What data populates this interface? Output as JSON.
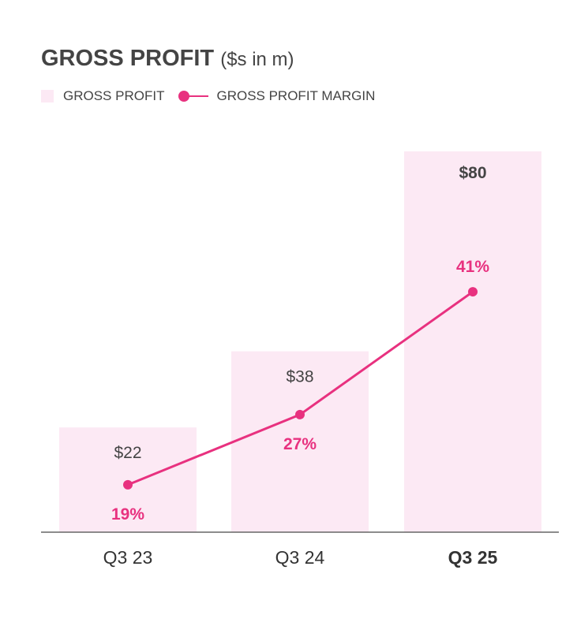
{
  "chart_data": {
    "type": "bar",
    "title": "GROSS PROFIT",
    "subtitle": "($s in m)",
    "categories": [
      "Q3 23",
      "Q3 24",
      "Q3 25"
    ],
    "highlight_category": "Q3 25",
    "series": [
      {
        "name": "GROSS PROFIT",
        "type": "bar",
        "values": [
          22,
          38,
          80
        ],
        "labels": [
          "$22",
          "$38",
          "$80"
        ],
        "color": "#fce9f4"
      },
      {
        "name": "GROSS PROFIT MARGIN",
        "type": "line",
        "values": [
          19,
          27,
          41
        ],
        "labels": [
          "19%",
          "27%",
          "41%"
        ],
        "color": "#e8317f"
      }
    ],
    "ylim": [
      0,
      80
    ],
    "y2lim": [
      13.6,
      57
    ],
    "grid": false,
    "legend": "top-left"
  },
  "colors": {
    "text": "#444444",
    "axis": "#666666"
  }
}
